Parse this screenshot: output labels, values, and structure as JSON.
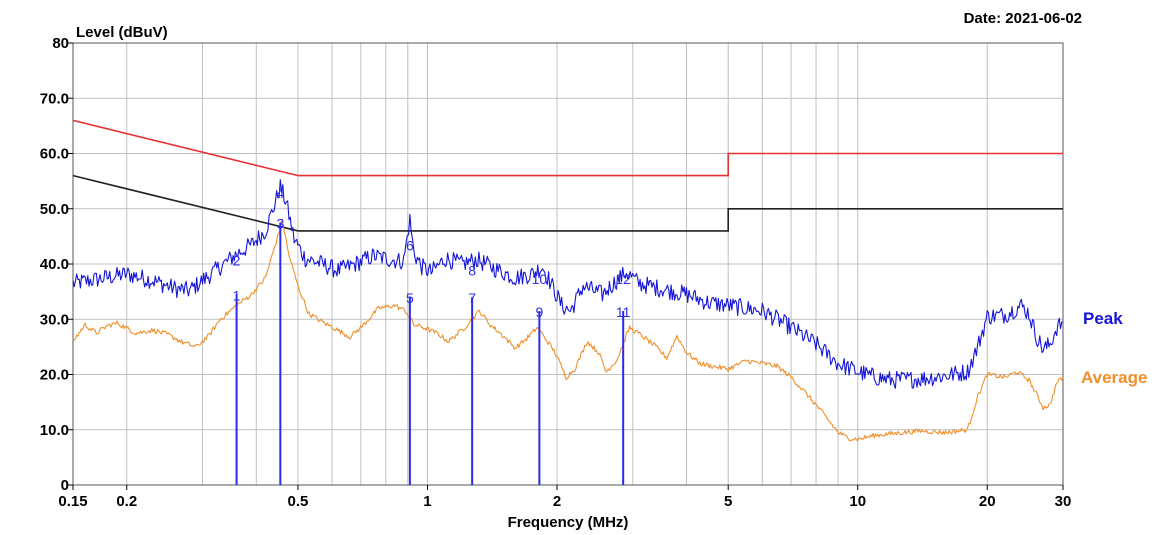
{
  "chart_data": {
    "type": "line",
    "header": {
      "ylabel": "Level (dBuV)",
      "date": "Date: 2021-06-02"
    },
    "xlabel": "Frequency (MHz)",
    "x_scale": "log",
    "xlim": [
      0.15,
      30
    ],
    "ylim": [
      0,
      80
    ],
    "x_ticks": [
      {
        "value": 0.15,
        "label": "0.15"
      },
      {
        "value": 0.2,
        "label": "0.2"
      },
      {
        "value": 0.5,
        "label": "0.5"
      },
      {
        "value": 1,
        "label": "1"
      },
      {
        "value": 2,
        "label": "2"
      },
      {
        "value": 5,
        "label": "5"
      },
      {
        "value": 10,
        "label": "10"
      },
      {
        "value": 20,
        "label": "20"
      },
      {
        "value": 30,
        "label": "30"
      }
    ],
    "x_grid": [
      0.15,
      0.2,
      0.3,
      0.4,
      0.5,
      0.6,
      0.7,
      0.8,
      0.9,
      1,
      2,
      3,
      4,
      5,
      6,
      7,
      8,
      9,
      10,
      20,
      30
    ],
    "y_ticks": [
      {
        "value": 0,
        "label": "0"
      },
      {
        "value": 10,
        "label": "10.0"
      },
      {
        "value": 20,
        "label": "20.0"
      },
      {
        "value": 30,
        "label": "30.0"
      },
      {
        "value": 40,
        "label": "40.0"
      },
      {
        "value": 50,
        "label": "50.0"
      },
      {
        "value": 60,
        "label": "60.0"
      },
      {
        "value": 70,
        "label": "70.0"
      },
      {
        "value": 80,
        "label": "80"
      }
    ],
    "grid": true,
    "colors": {
      "peak": "#1515d8",
      "average": "#f0902a",
      "qp_limit": "#e83030",
      "avg_limit": "#222222",
      "grid": "#c0c0c0",
      "marker": "#2a2af0"
    },
    "limit_lines": [
      {
        "name": "qp_limit",
        "points": [
          [
            0.15,
            66
          ],
          [
            0.5,
            56
          ],
          [
            5,
            56
          ],
          [
            5,
            60
          ],
          [
            30,
            60
          ]
        ]
      },
      {
        "name": "avg_limit",
        "points": [
          [
            0.15,
            56
          ],
          [
            0.5,
            46
          ],
          [
            5,
            46
          ],
          [
            5,
            50
          ],
          [
            30,
            50
          ]
        ]
      }
    ],
    "series": [
      {
        "name": "Peak",
        "points": [
          [
            0.15,
            36.5
          ],
          [
            0.17,
            37.2
          ],
          [
            0.2,
            38.2
          ],
          [
            0.23,
            37.0
          ],
          [
            0.26,
            35.5
          ],
          [
            0.28,
            35.2
          ],
          [
            0.3,
            37.0
          ],
          [
            0.33,
            39.5
          ],
          [
            0.36,
            41.8
          ],
          [
            0.39,
            43.5
          ],
          [
            0.42,
            46.0
          ],
          [
            0.44,
            50.5
          ],
          [
            0.455,
            54.0
          ],
          [
            0.47,
            51.0
          ],
          [
            0.49,
            44.5
          ],
          [
            0.52,
            41.0
          ],
          [
            0.56,
            40.2
          ],
          [
            0.62,
            38.8
          ],
          [
            0.68,
            40.0
          ],
          [
            0.75,
            41.5
          ],
          [
            0.82,
            40.8
          ],
          [
            0.88,
            40.5
          ],
          [
            0.91,
            48.0
          ],
          [
            0.93,
            42.0
          ],
          [
            0.97,
            39.5
          ],
          [
            1.02,
            38.5
          ],
          [
            1.1,
            41.0
          ],
          [
            1.2,
            40.0
          ],
          [
            1.3,
            40.8
          ],
          [
            1.45,
            39.0
          ],
          [
            1.6,
            37.5
          ],
          [
            1.75,
            38.2
          ],
          [
            1.85,
            39.5
          ],
          [
            1.95,
            36.0
          ],
          [
            2.05,
            32.5
          ],
          [
            2.15,
            31.5
          ],
          [
            2.3,
            36.0
          ],
          [
            2.55,
            34.5
          ],
          [
            2.75,
            37.0
          ],
          [
            2.9,
            38.5
          ],
          [
            3.1,
            36.5
          ],
          [
            3.5,
            35.5
          ],
          [
            4.0,
            34.5
          ],
          [
            4.5,
            33.0
          ],
          [
            5.0,
            32.5
          ],
          [
            5.5,
            32.0
          ],
          [
            6.0,
            31.5
          ],
          [
            6.5,
            30.0
          ],
          [
            7.0,
            28.5
          ],
          [
            8.0,
            25.5
          ],
          [
            9.0,
            22.0
          ],
          [
            10.0,
            20.5
          ],
          [
            11.0,
            19.5
          ],
          [
            12.0,
            19.0
          ],
          [
            14.0,
            19.2
          ],
          [
            16.0,
            19.8
          ],
          [
            18.0,
            20.5
          ],
          [
            19.0,
            25.0
          ],
          [
            20.0,
            30.5
          ],
          [
            22.0,
            30.8
          ],
          [
            24.0,
            32.5
          ],
          [
            25.0,
            31.0
          ],
          [
            26.0,
            27.0
          ],
          [
            27.0,
            24.5
          ],
          [
            28.0,
            25.5
          ],
          [
            29.0,
            28.5
          ],
          [
            30.0,
            29.5
          ]
        ]
      },
      {
        "name": "Average",
        "points": [
          [
            0.15,
            26.0
          ],
          [
            0.16,
            29.0
          ],
          [
            0.17,
            27.5
          ],
          [
            0.18,
            28.8
          ],
          [
            0.19,
            29.3
          ],
          [
            0.21,
            27.5
          ],
          [
            0.23,
            28.0
          ],
          [
            0.25,
            27.2
          ],
          [
            0.27,
            25.8
          ],
          [
            0.29,
            25.0
          ],
          [
            0.31,
            27.0
          ],
          [
            0.33,
            30.0
          ],
          [
            0.36,
            32.5
          ],
          [
            0.39,
            34.5
          ],
          [
            0.42,
            37.5
          ],
          [
            0.445,
            44.0
          ],
          [
            0.46,
            48.0
          ],
          [
            0.475,
            42.0
          ],
          [
            0.5,
            36.0
          ],
          [
            0.53,
            31.0
          ],
          [
            0.57,
            29.5
          ],
          [
            0.62,
            28.0
          ],
          [
            0.66,
            26.8
          ],
          [
            0.7,
            28.5
          ],
          [
            0.77,
            32.0
          ],
          [
            0.84,
            32.5
          ],
          [
            0.89,
            31.5
          ],
          [
            0.93,
            29.0
          ],
          [
            0.98,
            28.5
          ],
          [
            1.05,
            27.5
          ],
          [
            1.12,
            26.0
          ],
          [
            1.22,
            28.5
          ],
          [
            1.32,
            31.5
          ],
          [
            1.4,
            29.0
          ],
          [
            1.5,
            27.0
          ],
          [
            1.6,
            24.8
          ],
          [
            1.7,
            26.5
          ],
          [
            1.8,
            28.5
          ],
          [
            1.88,
            26.5
          ],
          [
            1.98,
            24.0
          ],
          [
            2.1,
            19.5
          ],
          [
            2.2,
            21.0
          ],
          [
            2.35,
            26.0
          ],
          [
            2.5,
            24.0
          ],
          [
            2.6,
            20.5
          ],
          [
            2.75,
            22.5
          ],
          [
            2.95,
            28.5
          ],
          [
            3.15,
            27.0
          ],
          [
            3.4,
            25.0
          ],
          [
            3.6,
            23.0
          ],
          [
            3.8,
            27.0
          ],
          [
            4.0,
            24.0
          ],
          [
            4.3,
            22.0
          ],
          [
            4.6,
            21.5
          ],
          [
            5.0,
            21.0
          ],
          [
            5.5,
            22.5
          ],
          [
            6.0,
            22.0
          ],
          [
            6.5,
            21.5
          ],
          [
            7.0,
            19.5
          ],
          [
            7.5,
            17.0
          ],
          [
            8.0,
            14.5
          ],
          [
            8.5,
            12.0
          ],
          [
            9.0,
            9.5
          ],
          [
            9.5,
            8.5
          ],
          [
            10.0,
            8.3
          ],
          [
            11.0,
            9.0
          ],
          [
            12.0,
            9.3
          ],
          [
            14.0,
            9.8
          ],
          [
            16.0,
            9.5
          ],
          [
            18.0,
            10.0
          ],
          [
            19.0,
            16.0
          ],
          [
            20.0,
            20.0
          ],
          [
            22.0,
            19.5
          ],
          [
            23.5,
            20.5
          ],
          [
            25.0,
            19.0
          ],
          [
            26.0,
            16.5
          ],
          [
            27.0,
            14.0
          ],
          [
            28.0,
            14.5
          ],
          [
            29.0,
            18.5
          ],
          [
            30.0,
            19.5
          ]
        ]
      }
    ],
    "markers": [
      {
        "freq": 0.36,
        "level": 34.5,
        "top": {
          "label": "1",
          "level": 34.5
        },
        "upper": {
          "label": "2",
          "level": 40.8
        }
      },
      {
        "freq": 0.455,
        "level": 47.5,
        "top": {
          "label": "3",
          "level": 47.5
        },
        "upper": {
          "label": "4",
          "level": 53.0
        }
      },
      {
        "freq": 0.91,
        "level": 34.0,
        "top": {
          "label": "5",
          "level": 34.0
        },
        "upper": {
          "label": "6",
          "level": 43.5
        }
      },
      {
        "freq": 1.27,
        "level": 34.0,
        "top": {
          "label": "7",
          "level": 34.0
        },
        "upper": {
          "label": "8",
          "level": 39.0
        }
      },
      {
        "freq": 1.82,
        "level": 31.5,
        "top": {
          "label": "9",
          "level": 31.5
        },
        "upper": {
          "label": "10",
          "level": 37.5
        }
      },
      {
        "freq": 2.85,
        "level": 31.5,
        "top": {
          "label": "11",
          "level": 31.5
        },
        "upper": {
          "label": "12",
          "level": 37.5
        }
      }
    ],
    "legend_placement": "right"
  }
}
